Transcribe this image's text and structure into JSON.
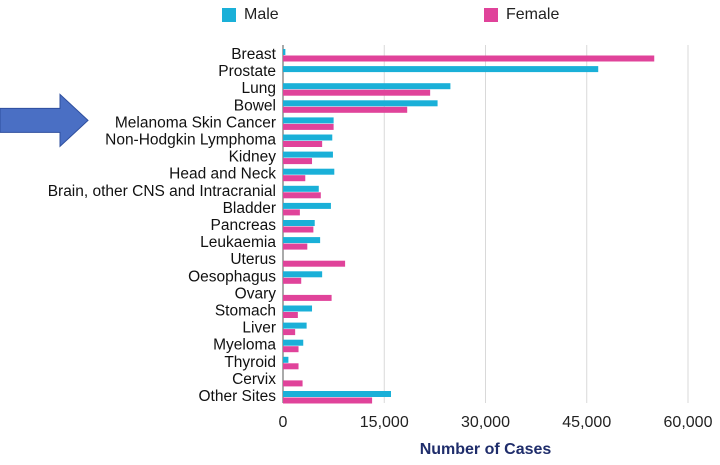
{
  "colors": {
    "male": "#1ab0d8",
    "female": "#e0439a",
    "arrow": "#4a6fc4",
    "grid": "#d9d9d9",
    "axis_title": "#1f2d6b"
  },
  "chart_data": {
    "type": "bar",
    "orientation": "horizontal",
    "title": "",
    "xlabel": "Number of Cases",
    "ylabel": "",
    "xlim": [
      0,
      60000
    ],
    "xticks": [
      "0",
      "15,000",
      "30,000",
      "45,000",
      "60,000"
    ],
    "grid": true,
    "legend_position": "top",
    "categories": [
      "Breast",
      "Prostate",
      "Lung",
      "Bowel",
      "Melanoma Skin Cancer",
      "Non-Hodgkin Lymphoma",
      "Kidney",
      "Head and Neck",
      "Brain, other CNS and Intracranial",
      "Bladder",
      "Pancreas",
      "Leukaemia",
      "Uterus",
      "Oesophagus",
      "Ovary",
      "Stomach",
      "Liver",
      "Myeloma",
      "Thyroid",
      "Cervix",
      "Other Sites"
    ],
    "series": [
      {
        "name": "Male",
        "values": [
          350,
          46700,
          24800,
          22900,
          7500,
          7300,
          7400,
          7600,
          5300,
          7100,
          4700,
          5500,
          0,
          5800,
          0,
          4300,
          3500,
          3000,
          800,
          0,
          16000
        ]
      },
      {
        "name": "Female",
        "values": [
          55000,
          0,
          21800,
          18400,
          7500,
          5800,
          4300,
          3300,
          5600,
          2500,
          4500,
          3600,
          9200,
          2700,
          7200,
          2200,
          1800,
          2300,
          2300,
          2900,
          13200
        ]
      }
    ],
    "annotation": "arrow pointing to Melanoma Skin Cancer"
  }
}
